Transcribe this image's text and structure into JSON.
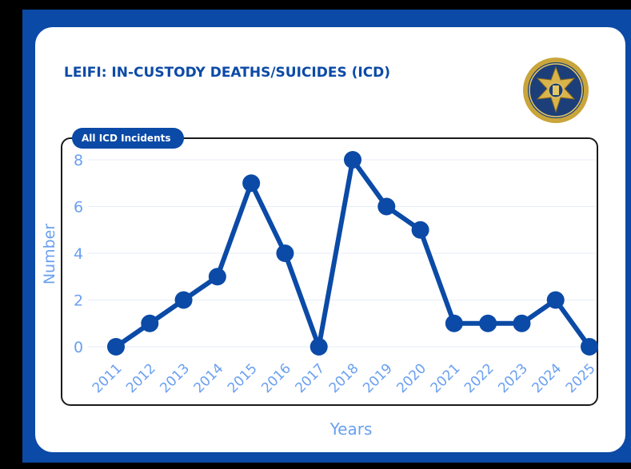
{
  "header": {
    "title": "LEIFI: IN-CUSTODY DEATHS/SUICIDES (ICD)"
  },
  "seal_icon": "district-attorney-seal-icon",
  "chart_data": {
    "type": "line",
    "title": "All ICD Incidents",
    "xlabel": "Years",
    "ylabel": "Number",
    "x": [
      "2011",
      "2012",
      "2013",
      "2014",
      "2015",
      "2016",
      "2017",
      "2018",
      "2019",
      "2020",
      "2021",
      "2022",
      "2023",
      "2024",
      "2025"
    ],
    "series": [
      {
        "values": [
          0,
          1,
          2,
          3,
          7,
          4,
          0,
          8,
          6,
          5,
          1,
          1,
          1,
          2,
          0
        ]
      }
    ],
    "yticks": [
      0,
      2,
      4,
      6,
      8
    ],
    "ylim": [
      0,
      8
    ],
    "grid": true,
    "legend": "none"
  },
  "colors": {
    "accent": "#0b4aa6",
    "tick": "#6aa0f0",
    "background": "#000000"
  }
}
